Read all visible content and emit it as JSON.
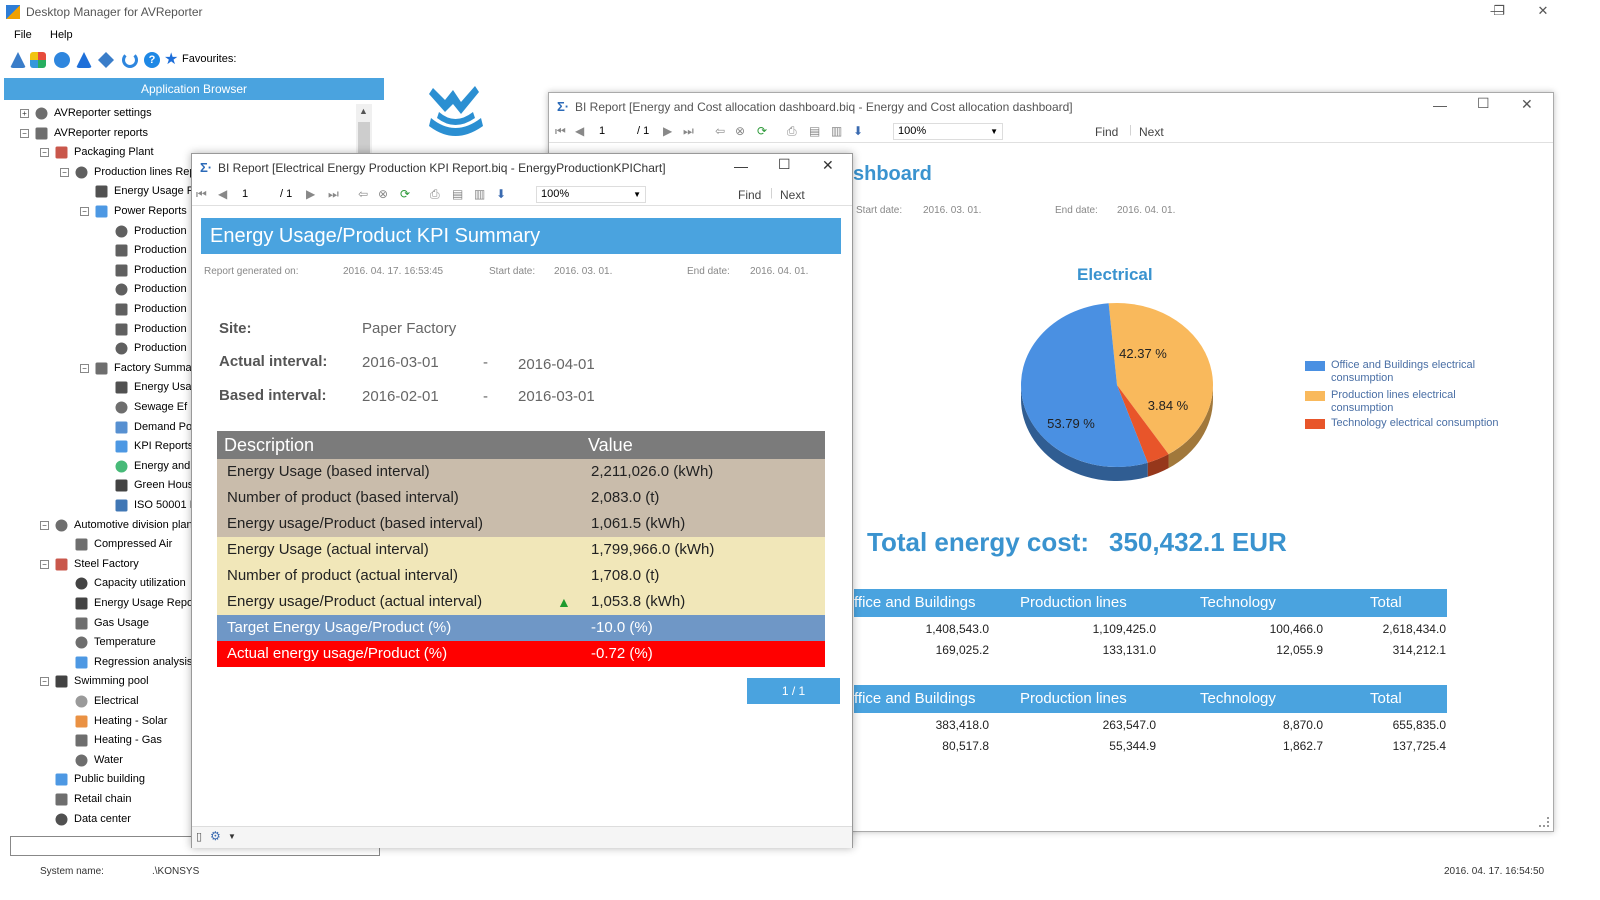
{
  "window": {
    "title": "Desktop Manager for AVReporter",
    "minimize": "—",
    "restore": "❐",
    "close": "✕"
  },
  "menu": {
    "file": "File",
    "help": "Help"
  },
  "toolbar": {
    "favourites": "Favourites:"
  },
  "browser": {
    "header": "Application Browser",
    "items": [
      {
        "label": "AVReporter settings"
      },
      {
        "label": "AVReporter reports"
      },
      {
        "label": "Packaging Plant"
      },
      {
        "label": "Production lines Rep"
      },
      {
        "label": "Energy Usage F"
      },
      {
        "label": "Power Reports"
      },
      {
        "label": "Production"
      },
      {
        "label": "Production"
      },
      {
        "label": "Production"
      },
      {
        "label": "Production"
      },
      {
        "label": "Production"
      },
      {
        "label": "Production"
      },
      {
        "label": "Production"
      },
      {
        "label": "Factory Summa"
      },
      {
        "label": "Energy Usa"
      },
      {
        "label": "Sewage Ef"
      },
      {
        "label": "Demand Po"
      },
      {
        "label": "KPI Reports"
      },
      {
        "label": "Energy and"
      },
      {
        "label": "Green Hous"
      },
      {
        "label": "ISO 50001 I"
      },
      {
        "label": "Automotive division plant"
      },
      {
        "label": "Compressed Air"
      },
      {
        "label": "Steel Factory"
      },
      {
        "label": "Capacity utilization"
      },
      {
        "label": "Energy Usage Repo"
      },
      {
        "label": "Gas Usage"
      },
      {
        "label": "Temperature"
      },
      {
        "label": "Regression analysis"
      },
      {
        "label": "Swimming pool"
      },
      {
        "label": "Electrical"
      },
      {
        "label": "Heating - Solar"
      },
      {
        "label": "Heating - Gas"
      },
      {
        "label": "Water"
      },
      {
        "label": "Public building"
      },
      {
        "label": "Retail chain"
      },
      {
        "label": "Data center"
      }
    ]
  },
  "status": {
    "system_label": "System name:",
    "system_value": ".\\KONSYS",
    "timestamp": "2016. 04. 17. 16:54:50"
  },
  "dashboard": {
    "title": "BI Report [Energy and Cost allocation dashboard.biq - Energy and Cost allocation dashboard]",
    "page": "1",
    "page_total": "/ 1",
    "zoom": "100%",
    "find": "Find",
    "next": "Next",
    "heading_partial": "shboard",
    "start_label": "Start date:",
    "start_value": "2016. 03. 01.",
    "end_label": "End date:",
    "end_value": "2016. 04. 01.",
    "chart_title": "Electrical",
    "total_label": "Total energy cost:",
    "total_value": "350,432.1 EUR",
    "legend": [
      {
        "label": "Office and Buildings electrical consumption",
        "color": "#4a90e2"
      },
      {
        "label": "Production lines electrical consumption",
        "color": "#f9b95c"
      },
      {
        "label": "Technology electrical consumption",
        "color": "#e8552a"
      }
    ],
    "table1": {
      "headers": [
        "ffice and Buildings",
        "Production lines",
        "Technology",
        "Total"
      ],
      "rows": [
        [
          "1,408,543.0",
          "1,109,425.0",
          "100,466.0",
          "2,618,434.0"
        ],
        [
          "169,025.2",
          "133,131.0",
          "12,055.9",
          "314,212.1"
        ]
      ]
    },
    "table2": {
      "headers": [
        "ffice and Buildings",
        "Production lines",
        "Technology",
        "Total"
      ],
      "rows": [
        [
          "383,418.0",
          "263,547.0",
          "8,870.0",
          "655,835.0"
        ],
        [
          "80,517.8",
          "55,344.9",
          "1,862.7",
          "137,725.4"
        ]
      ]
    }
  },
  "chart_data": {
    "type": "pie",
    "title": "Electrical",
    "categories": [
      "Office and Buildings electrical consumption",
      "Production lines electrical consumption",
      "Technology electrical consumption"
    ],
    "values": [
      53.79,
      42.37,
      3.84
    ],
    "labels": [
      "53.79 %",
      "42.37 %",
      "3.84 %"
    ],
    "colors": [
      "#4a90e2",
      "#f9b95c",
      "#e8552a"
    ],
    "legend_position": "right"
  },
  "kpi": {
    "title": "BI Report [Electrical Energy Production KPI Report.biq - EnergyProductionKPIChart]",
    "page": "1",
    "page_total": "/ 1",
    "zoom": "100%",
    "find": "Find",
    "next": "Next",
    "banner": "Energy Usage/Product  KPI Summary",
    "generated_label": "Report generated on:",
    "generated_value": "2016. 04. 17. 16:53:45",
    "start_label": "Start date:",
    "start_value": "2016. 03. 01.",
    "end_label": "End date:",
    "end_value": "2016. 04. 01.",
    "site_label": "Site:",
    "site_value": "Paper Factory",
    "actual_label": "Actual interval:",
    "actual_from": "2016-03-01",
    "actual_sep": "-",
    "actual_to": "2016-04-01",
    "based_label": "Based interval:",
    "based_from": "2016-02-01",
    "based_sep": "-",
    "based_to": "2016-03-01",
    "table_headers": [
      "Description",
      "Value"
    ],
    "rows": [
      {
        "desc": "Energy Usage (based interval)",
        "value": "2,211,026.0 (kWh)",
        "bg": "#c9bcab"
      },
      {
        "desc": "Number of product (based interval)",
        "value": "2,083.0 (t)",
        "bg": "#c9bcab"
      },
      {
        "desc": "Energy usage/Product (based interval)",
        "value": "1,061.5 (kWh)",
        "bg": "#c9bcab"
      },
      {
        "desc": "Energy Usage (actual interval)",
        "value": "1,799,966.0 (kWh)",
        "bg": "#f1e7b9"
      },
      {
        "desc": "Number of product (actual interval)",
        "value": "1,708.0 (t)",
        "bg": "#f1e7b9"
      },
      {
        "desc": "Energy usage/Product (actual interval)",
        "value": "1,053.8 (kWh)",
        "bg": "#f1e7b9"
      },
      {
        "desc": "Target Energy Usage/Product (%)",
        "value": "-10.0 (%)",
        "bg": "#6f97c6"
      },
      {
        "desc": "Actual energy usage/Product (%)",
        "value": "-0.72 (%)",
        "bg": "#ff0000"
      }
    ],
    "pager": "1 / 1"
  }
}
